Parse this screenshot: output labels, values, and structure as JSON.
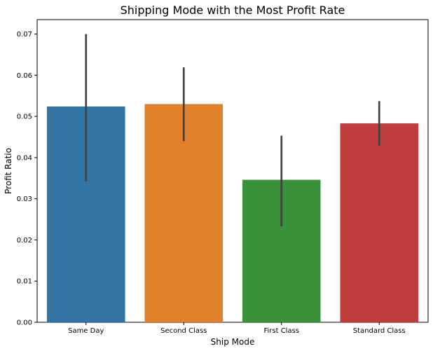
{
  "chart_data": {
    "type": "bar",
    "title": "Shipping Mode with the Most Profit Rate",
    "xlabel": "Ship Mode",
    "ylabel": "Profit Ratio",
    "categories": [
      "Same Day",
      "Second Class",
      "First Class",
      "Standard Class"
    ],
    "values": [
      0.0524,
      0.053,
      0.0346,
      0.0483
    ],
    "error_low": [
      0.0342,
      0.044,
      0.0233,
      0.0429
    ],
    "error_high": [
      0.07,
      0.0619,
      0.0453,
      0.0537
    ],
    "colors": [
      "#3274a1",
      "#e1812c",
      "#3a923a",
      "#c03d3e"
    ],
    "error_color": "#424242",
    "ylim": [
      0,
      0.0735
    ],
    "yticks": [
      0.0,
      0.01,
      0.02,
      0.03,
      0.04,
      0.05,
      0.06,
      0.07
    ],
    "ytick_labels": [
      "0.00",
      "0.01",
      "0.02",
      "0.03",
      "0.04",
      "0.05",
      "0.06",
      "0.07"
    ],
    "grid": false,
    "legend": "none"
  }
}
